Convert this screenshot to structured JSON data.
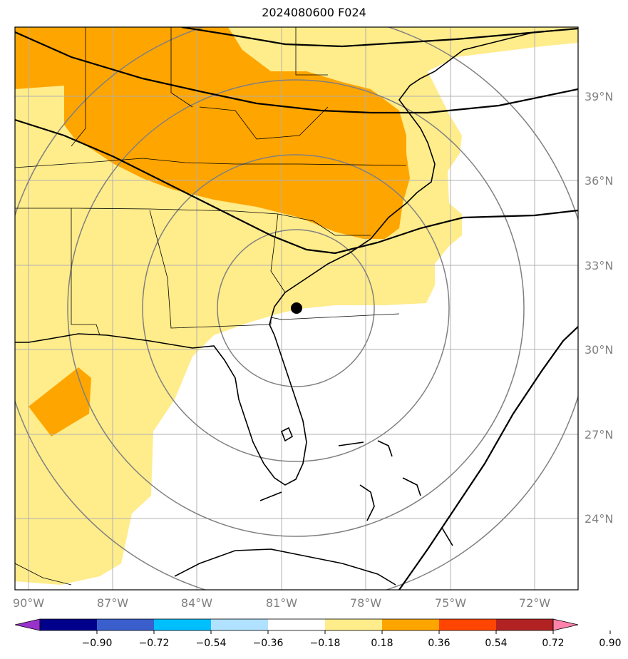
{
  "title": "2024080600 F024",
  "lat_labels": [
    "39°N",
    "36°N",
    "33°N",
    "30°N",
    "27°N",
    "24°N"
  ],
  "lon_labels": [
    "90°W",
    "87°W",
    "84°W",
    "81°W",
    "78°W",
    "75°W",
    "72°W"
  ],
  "storm_marker": {
    "lon": -80.3,
    "lat": 31.4,
    "label": ""
  },
  "colorbar": {
    "colors": [
      "#9932cc",
      "#00008b",
      "#3a5fcd",
      "#00bfff",
      "#b0e2ff",
      "#ffffff",
      "#ffec8b",
      "#ffa500",
      "#ff4500",
      "#b22222",
      "#ff82ab"
    ],
    "tick_labels": [
      "−0.90",
      "−0.72",
      "−0.54",
      "−0.36",
      "−0.18",
      "0.18",
      "0.36",
      "0.54",
      "0.72",
      "0.90"
    ]
  },
  "field_colors": {
    "light": "#ffec8b",
    "mid": "#ffa500"
  }
}
